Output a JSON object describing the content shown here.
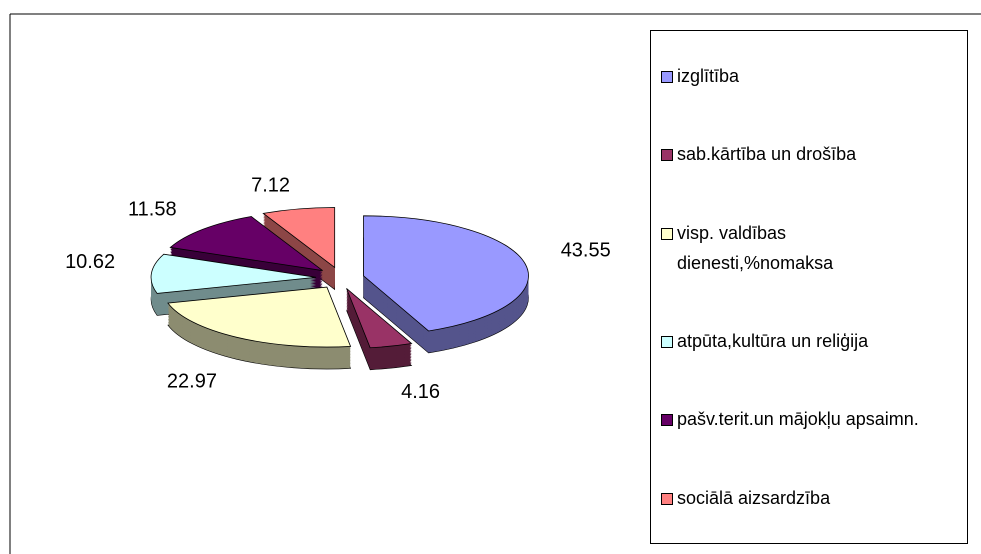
{
  "chart_data": {
    "type": "pie3d",
    "categories": [
      "izglītība",
      "sab.kārtība un drošība",
      "visp. valdības dienesti,%nomaksa",
      "atpūta,kultūra un reliģija",
      "pašv.terit.un mājokļu apsaimn.",
      "sociālā aizsardzība"
    ],
    "values": [
      43.55,
      4.16,
      22.97,
      10.62,
      11.58,
      7.12
    ],
    "colors": [
      "#9999ff",
      "#993366",
      "#ffffcc",
      "#ccffff",
      "#660066",
      "#ff8080"
    ],
    "legend": "right"
  }
}
